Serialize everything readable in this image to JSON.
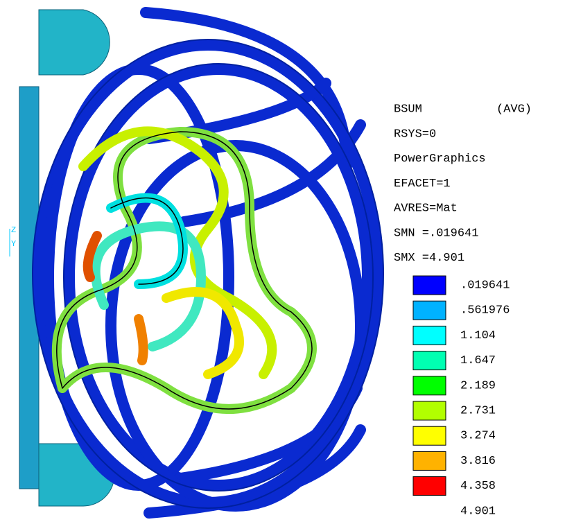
{
  "legend": {
    "title": "BSUM",
    "qualifier": "(AVG)",
    "settings": [
      "RSYS=0",
      "PowerGraphics",
      "EFACET=1",
      "AVRES=Mat",
      "SMN =.019641",
      "SMX =4.901"
    ],
    "levels": [
      ".019641",
      ".561976",
      "1.104",
      "1.647",
      "2.189",
      "2.731",
      "3.274",
      "3.816",
      "4.358",
      "4.901"
    ],
    "colors": [
      "#0000ff",
      "#00b2ff",
      "#00ffff",
      "#00ffb2",
      "#00ff00",
      "#b2ff00",
      "#ffff00",
      "#ffb200",
      "#ff0000"
    ]
  },
  "triad": {
    "z": "Z",
    "y": "Y"
  }
}
